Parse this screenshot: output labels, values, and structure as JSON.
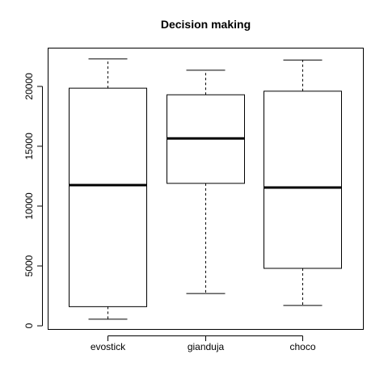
{
  "chart_data": {
    "type": "boxplot",
    "title": "Decision making",
    "xlabel": "",
    "ylabel": "",
    "ylim": [
      -300,
      23200
    ],
    "yticks": [
      0,
      5000,
      10000,
      15000,
      20000
    ],
    "grid": false,
    "categories": [
      "evostick",
      "gianduja",
      "choco"
    ],
    "boxes": [
      {
        "whisker_low": 550,
        "q1": 1600,
        "median": 11750,
        "q3": 19850,
        "whisker_high": 22300
      },
      {
        "whisker_low": 2700,
        "q1": 11900,
        "median": 15650,
        "q3": 19300,
        "whisker_high": 21350
      },
      {
        "whisker_low": 1700,
        "q1": 4800,
        "median": 11550,
        "q3": 19600,
        "whisker_high": 22200
      }
    ]
  }
}
